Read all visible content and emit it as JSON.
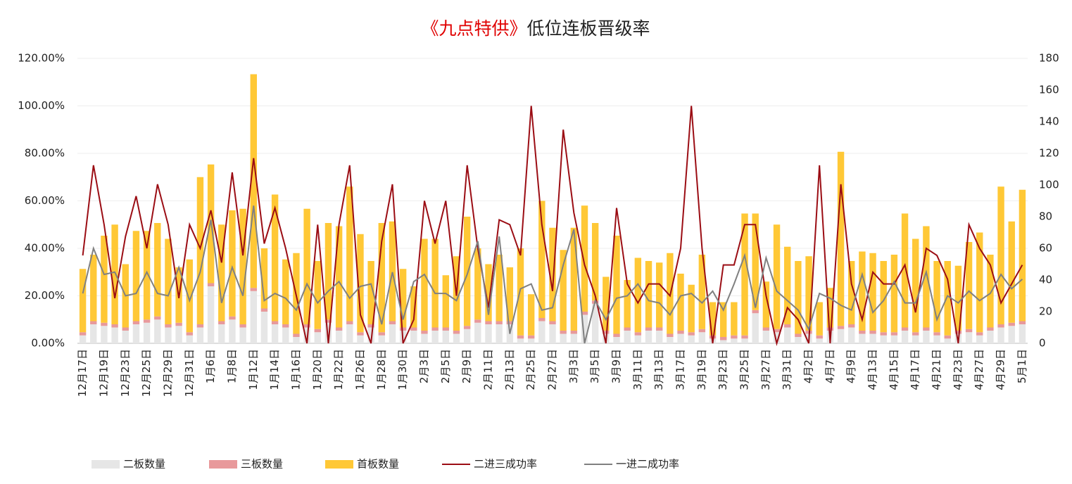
{
  "chart_data": {
    "type": "bar-line",
    "title_highlight": "《九点特供》",
    "title": "低位连板晋级率",
    "categories": [
      "12月17日",
      null,
      "12月19日",
      null,
      "12月23日",
      null,
      "12月25日",
      null,
      "12月29日",
      null,
      "12月31日",
      null,
      "1月6日",
      null,
      "1月8日",
      null,
      "1月12日",
      null,
      "1月14日",
      null,
      "1月16日",
      null,
      "1月20日",
      null,
      "1月22日",
      null,
      "1月26日",
      null,
      "1月28日",
      null,
      "1月30日",
      null,
      "2月3日",
      null,
      "2月5日",
      null,
      "2月9日",
      null,
      "2月11日",
      null,
      "2月13日",
      null,
      "2月25日",
      null,
      "2月27日",
      null,
      "3月3日",
      null,
      "3月5日",
      null,
      "3月9日",
      null,
      "3月11日",
      null,
      "3月13日",
      null,
      "3月17日",
      null,
      "3月19日",
      null,
      "3月23日",
      null,
      "3月25日",
      null,
      "3月27日",
      null,
      "3月31日",
      null,
      "4月2日",
      null,
      "4月7日",
      null,
      "4月9日",
      null,
      "4月13日",
      null,
      "4月15日",
      null,
      "4月17日",
      null,
      "4月21日",
      null,
      "4月23日",
      null,
      "4月27日",
      null,
      "4月29日",
      null,
      "5月1日"
    ],
    "series": [
      {
        "name": "二板数量",
        "kind": "bar",
        "axis": "y2",
        "color": "#e6e6e6",
        "values": [
          5,
          12,
          11,
          10,
          8,
          12,
          13,
          15,
          10,
          11,
          5,
          10,
          36,
          12,
          15,
          10,
          33,
          20,
          12,
          10,
          4,
          10,
          7,
          13,
          8,
          12,
          5,
          10,
          5,
          12,
          8,
          8,
          6,
          8,
          8,
          6,
          9,
          13,
          12,
          12,
          12,
          3,
          3,
          14,
          12,
          6,
          6,
          18,
          25,
          6,
          4,
          8,
          5,
          8,
          8,
          4,
          6,
          5,
          7,
          3,
          2,
          3,
          3,
          19,
          8,
          7,
          10,
          4,
          6,
          3,
          8,
          9,
          10,
          6,
          6,
          5,
          5,
          8,
          5,
          8,
          5,
          3,
          6,
          7,
          5,
          8,
          10,
          11,
          12
        ]
      },
      {
        "name": "三板数量",
        "kind": "bar",
        "axis": "y2",
        "color": "#e8999b",
        "values": [
          2,
          2,
          2,
          2,
          2,
          2,
          2,
          2,
          2,
          2,
          2,
          2,
          2,
          2,
          2,
          2,
          2,
          2,
          2,
          2,
          2,
          2,
          2,
          2,
          2,
          2,
          2,
          2,
          2,
          2,
          2,
          2,
          2,
          2,
          2,
          2,
          2,
          2,
          2,
          2,
          2,
          2,
          2,
          2,
          2,
          2,
          2,
          2,
          2,
          2,
          2,
          2,
          2,
          2,
          2,
          2,
          2,
          2,
          2,
          2,
          2,
          2,
          2,
          2,
          2,
          2,
          2,
          2,
          2,
          2,
          2,
          2,
          2,
          2,
          2,
          2,
          2,
          2,
          2,
          2,
          2,
          2,
          2,
          2,
          2,
          2,
          2,
          2,
          2
        ]
      },
      {
        "name": "首板数量",
        "kind": "bar",
        "axis": "y2",
        "color": "#ffc836",
        "values": [
          40,
          42,
          55,
          63,
          40,
          57,
          56,
          59,
          54,
          35,
          46,
          93,
          75,
          61,
          67,
          73,
          135,
          38,
          80,
          41,
          51,
          73,
          43,
          61,
          64,
          85,
          62,
          40,
          69,
          63,
          37,
          26,
          58,
          56,
          33,
          47,
          69,
          45,
          36,
          42,
          34,
          55,
          26,
          74,
          59,
          51,
          65,
          67,
          49,
          34,
          62,
          30,
          47,
          42,
          41,
          51,
          36,
          30,
          47,
          21,
          22,
          21,
          77,
          61,
          29,
          66,
          49,
          46,
          47,
          21,
          25,
          110,
          40,
          50,
          49,
          45,
          49,
          72,
          59,
          64,
          45,
          47,
          41,
          55,
          63,
          46,
          87,
          64,
          83
        ]
      },
      {
        "name": "二进三成功率",
        "kind": "line",
        "color": "#9b0d14",
        "values": [
          37,
          75,
          50,
          19,
          45,
          62,
          40,
          67,
          50,
          19,
          50,
          40,
          56,
          34,
          72,
          37,
          78,
          42,
          57,
          40,
          20,
          0,
          50,
          0,
          50,
          75,
          12,
          0,
          43,
          67,
          0,
          10,
          60,
          42,
          60,
          20,
          75,
          40,
          15,
          52,
          50,
          37,
          100,
          50,
          22,
          90,
          55,
          33,
          20,
          0,
          57,
          25,
          17,
          25,
          25,
          20,
          40,
          100,
          40,
          0,
          33,
          33,
          50,
          50,
          20,
          0,
          15,
          10,
          0,
          75,
          0,
          67,
          25,
          10,
          30,
          25,
          25,
          33,
          13,
          40,
          37,
          27,
          0,
          50,
          40,
          33,
          17,
          25,
          33
        ]
      },
      {
        "name": "一进二成功率",
        "kind": "line",
        "color": "#808080",
        "values": [
          21,
          40,
          29,
          30,
          20,
          21,
          30,
          21,
          20,
          32,
          18,
          30,
          52,
          17,
          32,
          20,
          58,
          18,
          21,
          19,
          14,
          25,
          17,
          22,
          26,
          19,
          24,
          25,
          8,
          30,
          10,
          26,
          29,
          21,
          21,
          18,
          29,
          43,
          12,
          45,
          4,
          23,
          25,
          14,
          15,
          33,
          48,
          0,
          18,
          10,
          19,
          20,
          25,
          18,
          17,
          12,
          20,
          21,
          17,
          22,
          14,
          25,
          37,
          15,
          36,
          22,
          18,
          14,
          6,
          21,
          19,
          16,
          14,
          29,
          13,
          18,
          26,
          17,
          17,
          30,
          10,
          20,
          17,
          22,
          18,
          21,
          29,
          23,
          27
        ]
      }
    ],
    "ylim": [
      0,
      120
    ],
    "yticks": [
      {
        "value": 0,
        "label": "0.00%"
      },
      {
        "value": 20,
        "label": "20.00%"
      },
      {
        "value": 40,
        "label": "40.00%"
      },
      {
        "value": 60,
        "label": "60.00%"
      },
      {
        "value": 80,
        "label": "80.00%"
      },
      {
        "value": 100,
        "label": "100.00%"
      },
      {
        "value": 120,
        "label": "120.00%"
      }
    ],
    "y2lim": [
      0,
      180
    ],
    "y2ticks": [
      0,
      20,
      40,
      60,
      80,
      100,
      120,
      140,
      160,
      180
    ],
    "grid": true,
    "legend": "bottom"
  }
}
